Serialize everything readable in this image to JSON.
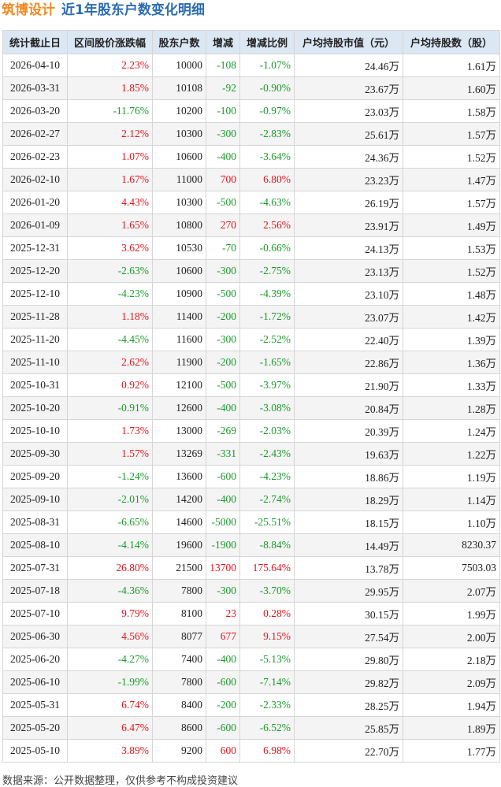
{
  "header": {
    "stock": "筑博设计",
    "title": "近1年股东户数变化明细"
  },
  "table": {
    "columns": [
      "统计截止日",
      "区间股价涨跌幅",
      "股东户数",
      "增减",
      "增减比例",
      "户均持股市值（元）",
      "户均持股数（股）"
    ],
    "rows": [
      [
        "2026-04-10",
        "2.23%",
        "10000",
        "-108",
        "-1.07%",
        "24.46万",
        "1.61万"
      ],
      [
        "2026-03-31",
        "1.85%",
        "10108",
        "-92",
        "-0.90%",
        "23.67万",
        "1.60万"
      ],
      [
        "2026-03-20",
        "-11.76%",
        "10200",
        "-100",
        "-0.97%",
        "23.03万",
        "1.58万"
      ],
      [
        "2026-02-27",
        "2.12%",
        "10300",
        "-300",
        "-2.83%",
        "25.61万",
        "1.57万"
      ],
      [
        "2026-02-23",
        "1.07%",
        "10600",
        "-400",
        "-3.64%",
        "24.36万",
        "1.52万"
      ],
      [
        "2026-02-10",
        "1.67%",
        "11000",
        "700",
        "6.80%",
        "23.23万",
        "1.47万"
      ],
      [
        "2026-01-20",
        "4.43%",
        "10300",
        "-500",
        "-4.63%",
        "26.19万",
        "1.57万"
      ],
      [
        "2026-01-09",
        "1.65%",
        "10800",
        "270",
        "2.56%",
        "23.91万",
        "1.49万"
      ],
      [
        "2025-12-31",
        "3.62%",
        "10530",
        "-70",
        "-0.66%",
        "24.13万",
        "1.53万"
      ],
      [
        "2025-12-20",
        "-2.63%",
        "10600",
        "-300",
        "-2.75%",
        "23.13万",
        "1.52万"
      ],
      [
        "2025-12-10",
        "-4.23%",
        "10900",
        "-500",
        "-4.39%",
        "23.10万",
        "1.48万"
      ],
      [
        "2025-11-28",
        "1.18%",
        "11400",
        "-200",
        "-1.72%",
        "23.07万",
        "1.42万"
      ],
      [
        "2025-11-20",
        "-4.45%",
        "11600",
        "-300",
        "-2.52%",
        "22.40万",
        "1.39万"
      ],
      [
        "2025-11-10",
        "2.62%",
        "11900",
        "-200",
        "-1.65%",
        "22.86万",
        "1.36万"
      ],
      [
        "2025-10-31",
        "0.92%",
        "12100",
        "-500",
        "-3.97%",
        "21.90万",
        "1.33万"
      ],
      [
        "2025-10-20",
        "-0.91%",
        "12600",
        "-400",
        "-3.08%",
        "20.84万",
        "1.28万"
      ],
      [
        "2025-10-10",
        "1.73%",
        "13000",
        "-269",
        "-2.03%",
        "20.39万",
        "1.24万"
      ],
      [
        "2025-09-30",
        "1.57%",
        "13269",
        "-331",
        "-2.43%",
        "19.63万",
        "1.22万"
      ],
      [
        "2025-09-20",
        "-1.24%",
        "13600",
        "-600",
        "-4.23%",
        "18.86万",
        "1.19万"
      ],
      [
        "2025-09-10",
        "-2.01%",
        "14200",
        "-400",
        "-2.74%",
        "18.29万",
        "1.14万"
      ],
      [
        "2025-08-31",
        "-6.65%",
        "14600",
        "-5000",
        "-25.51%",
        "18.15万",
        "1.10万"
      ],
      [
        "2025-08-10",
        "-4.14%",
        "19600",
        "-1900",
        "-8.84%",
        "14.49万",
        "8230.37"
      ],
      [
        "2025-07-31",
        "26.80%",
        "21500",
        "13700",
        "175.64%",
        "13.78万",
        "7503.03"
      ],
      [
        "2025-07-18",
        "-4.36%",
        "7800",
        "-300",
        "-3.70%",
        "29.95万",
        "2.07万"
      ],
      [
        "2025-07-10",
        "9.79%",
        "8100",
        "23",
        "0.28%",
        "30.15万",
        "1.99万"
      ],
      [
        "2025-06-30",
        "4.56%",
        "8077",
        "677",
        "9.15%",
        "27.54万",
        "2.00万"
      ],
      [
        "2025-06-20",
        "-4.27%",
        "7400",
        "-400",
        "-5.13%",
        "29.80万",
        "2.18万"
      ],
      [
        "2025-06-10",
        "-1.99%",
        "7800",
        "-600",
        "-7.14%",
        "29.82万",
        "2.09万"
      ],
      [
        "2025-05-31",
        "6.74%",
        "8400",
        "-200",
        "-2.33%",
        "28.25万",
        "1.94万"
      ],
      [
        "2025-05-20",
        "6.47%",
        "8600",
        "-600",
        "-6.52%",
        "25.85万",
        "1.89万"
      ],
      [
        "2025-05-10",
        "3.89%",
        "9200",
        "600",
        "6.98%",
        "22.70万",
        "1.77万"
      ]
    ]
  },
  "footer": {
    "source": "数据来源：公开数据整理，仅供参考不构成投资建议"
  }
}
